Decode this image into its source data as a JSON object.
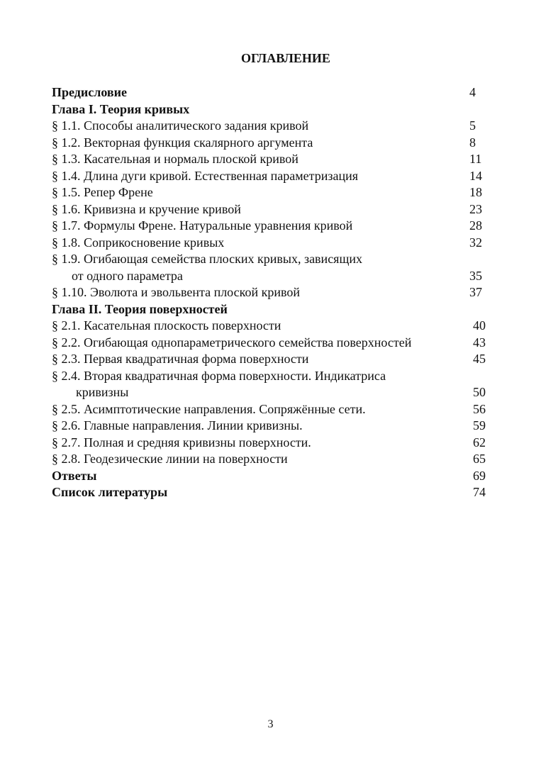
{
  "title": "ОГЛАВЛЕНИЕ",
  "entries": [
    {
      "label": "Предисловие",
      "page": "4",
      "bold": true
    },
    {
      "label": "Глава I. Теория кривых",
      "page": "",
      "bold": true
    },
    {
      "label": "§ 1.1. Способы аналитического задания кривой",
      "page": "5"
    },
    {
      "label": "§ 1.2. Векторная функция скалярного аргумента",
      "page": "8"
    },
    {
      "label": "§ 1.3. Касательная и нормаль плоской кривой",
      "page": "11"
    },
    {
      "label": "§ 1.4. Длина дуги кривой. Естественная параметризация",
      "page": "14"
    },
    {
      "label": "§ 1.5. Репер Френе",
      "page": "18"
    },
    {
      "label": "§ 1.6. Кривизна и кручение кривой",
      "page": "23"
    },
    {
      "label": "§ 1.7. Формулы Френе. Натуральные уравнения кривой",
      "page": "28"
    },
    {
      "label": "§ 1.8. Соприкосновение кривых",
      "page": "32"
    },
    {
      "label": "§ 1.9. Огибающая семейства плоских кривых, зависящих",
      "page": ""
    },
    {
      "label": "от одного параметра",
      "page": "35",
      "continuation": true
    },
    {
      "label": "§ 1.10. Эволюта и эвольвента плоской кривой",
      "page": "37"
    },
    {
      "label": "Глава II. Теория поверхностей",
      "page": "",
      "bold": true
    },
    {
      "label": "§ 2.1. Касательная плоскость поверхности",
      "page": "40"
    },
    {
      "label": "§ 2.2. Огибающая однопараметрического семейства поверхностей",
      "page": "43"
    },
    {
      "label": "§ 2.3. Первая квадратичная форма поверхности",
      "page": "45"
    },
    {
      "label": "§ 2.4. Вторая квадратичная форма поверхности. Индикатриса",
      "page": ""
    },
    {
      "label": "кривизны",
      "page": "50",
      "continuation": true
    },
    {
      "label": "§ 2.5. Асимптотические направления.  Сопряжённые сети.",
      "page": "56"
    },
    {
      "label": "§ 2.6. Главные направления. Линии кривизны.",
      "page": "59"
    },
    {
      "label": "§ 2.7. Полная и средняя кривизны поверхности.",
      "page": "62"
    },
    {
      "label": "§ 2.8. Геодезические линии на поверхности",
      "page": "65"
    },
    {
      "label": "Ответы",
      "page": "69",
      "bold": true
    },
    {
      "label": "Список литературы",
      "page": "74",
      "bold": true
    }
  ],
  "page_number": "3"
}
